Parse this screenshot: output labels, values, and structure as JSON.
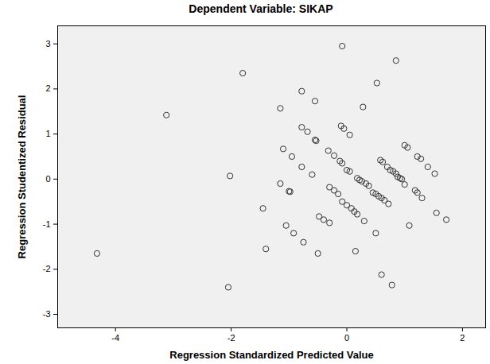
{
  "chart_data": {
    "type": "scatter",
    "title": "Dependent Variable: SIKAP",
    "x_label": "Regression Standardized Predicted Value",
    "y_label": "Regression Studentized Residual",
    "x": [
      -4.32,
      -3.12,
      -1.8,
      -2.02,
      -2.05,
      -1.15,
      -0.78,
      -0.55,
      -0.08,
      0.85,
      0.52,
      0.28,
      -0.78,
      -0.68,
      -0.55,
      -0.53,
      -0.1,
      -0.05,
      0.05,
      -1.1,
      -0.95,
      -0.32,
      -0.22,
      -0.12,
      -0.08,
      0.0,
      0.05,
      -1.15,
      -1.0,
      -0.98,
      -0.78,
      -0.6,
      -0.3,
      -0.22,
      -0.15,
      -0.08,
      0.0,
      0.08,
      0.13,
      0.18,
      -0.3,
      -0.4,
      -0.48,
      -1.45,
      -1.4,
      -1.05,
      -0.92,
      -0.75,
      -0.5,
      0.15,
      0.18,
      0.22,
      0.26,
      0.33,
      0.38,
      0.45,
      0.5,
      0.55,
      0.6,
      0.65,
      0.72,
      0.58,
      0.62,
      0.7,
      0.75,
      0.8,
      0.85,
      0.88,
      0.92,
      0.95,
      1.0,
      1.05,
      1.22,
      1.28,
      1.4,
      1.52,
      1.0,
      1.18,
      1.22,
      1.3,
      1.55,
      1.72,
      1.08,
      0.5,
      0.3,
      0.6,
      0.78
    ],
    "values": [
      -1.65,
      1.42,
      2.35,
      0.07,
      -2.4,
      1.57,
      1.95,
      1.73,
      2.95,
      2.63,
      2.13,
      1.6,
      1.15,
      1.05,
      0.87,
      0.85,
      1.18,
      1.12,
      0.98,
      0.67,
      0.5,
      0.63,
      0.52,
      0.4,
      0.35,
      0.2,
      0.17,
      -0.1,
      -0.27,
      -0.28,
      0.27,
      0.1,
      -0.18,
      -0.25,
      -0.33,
      -0.5,
      -0.58,
      -0.65,
      -0.72,
      -0.78,
      -0.97,
      -0.9,
      -0.83,
      -0.65,
      -1.55,
      -1.03,
      -1.2,
      -1.4,
      -1.65,
      -1.6,
      0.02,
      -0.02,
      -0.05,
      -0.1,
      -0.15,
      -0.3,
      -0.33,
      -0.38,
      -0.42,
      -0.47,
      -0.55,
      0.42,
      0.38,
      0.27,
      0.2,
      0.17,
      0.12,
      0.05,
      0.02,
      0.0,
      0.75,
      0.7,
      0.5,
      0.45,
      0.27,
      0.12,
      -0.12,
      -0.25,
      -0.3,
      -0.42,
      -0.75,
      -0.9,
      -1.03,
      -1.2,
      -0.93,
      -2.12,
      -2.35
    ],
    "xlim": [
      -5.0,
      2.4
    ],
    "ylim": [
      -3.3,
      3.4
    ],
    "xticks": [
      -4,
      -2,
      0,
      2
    ],
    "yticks": [
      -3,
      -2,
      -1,
      0,
      1,
      2,
      3
    ],
    "grid": false,
    "marker": "circle",
    "color": "#333333"
  }
}
